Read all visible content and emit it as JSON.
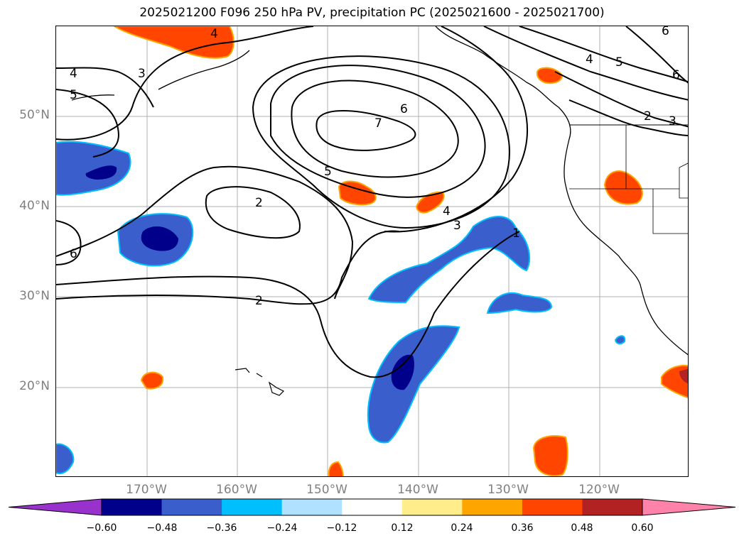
{
  "title": "2025021200 F096 250 hPa PV, precipitation PC (2025021600 - 2025021700)",
  "latitude_labels": [
    "50°N",
    "40°N",
    "30°N",
    "20°N"
  ],
  "longitude_labels": [
    "170°W",
    "160°W",
    "150°W",
    "140°W",
    "130°W",
    "120°W"
  ],
  "contour_labels": [
    "4",
    "3",
    "5",
    "4",
    "5",
    "6",
    "7",
    "6",
    "5",
    "2",
    "4",
    "3",
    "2",
    "1",
    "2",
    "3",
    "6",
    "4",
    "5",
    "6"
  ],
  "colorbar": {
    "ticks": [
      "−0.60",
      "−0.48",
      "−0.36",
      "−0.24",
      "−0.12",
      "0.12",
      "0.24",
      "0.36",
      "0.48",
      "0.60"
    ],
    "colors": [
      "#9932cc",
      "#00008b",
      "#3a5fcd",
      "#00bfff",
      "#b0e2ff",
      "#ffffff",
      "#ffec8b",
      "#ffa500",
      "#ff4500",
      "#b22222",
      "#ff82ab"
    ]
  },
  "colors": {
    "negative_fill": "#3a5fcd",
    "strong_negative_fill": "#00008b",
    "positive_fill": "#ff4500",
    "contour": "#000000",
    "grid": "#b0b0b0",
    "axis_label": "#808080"
  }
}
